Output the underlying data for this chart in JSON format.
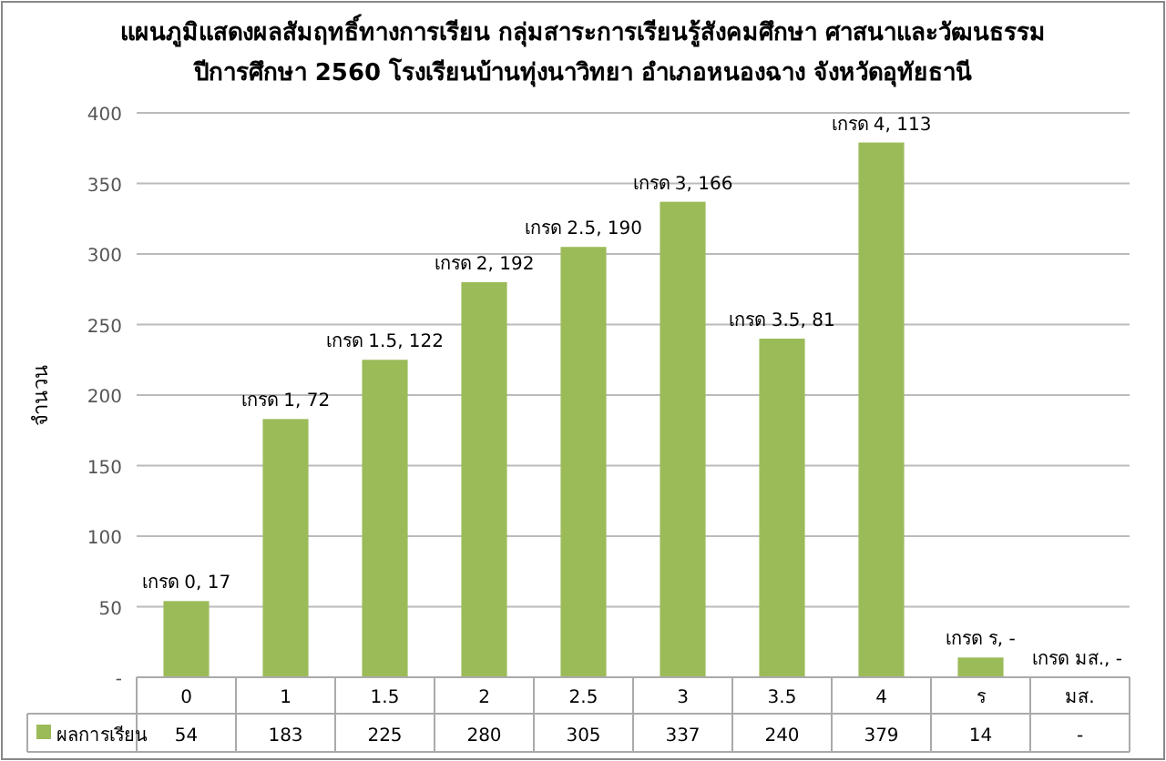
{
  "chart_data": {
    "type": "bar",
    "title": "แผนภูมิแสดงผลสัมฤทธิ์ทางการเรียน กลุ่มสาระการเรียนรู้สังคมศึกษา ศาสนาและวัฒนธรรม\nปีการศึกษา 2560  โรงเรียนบ้านทุ่งนาวิทยา อำเภอหนองฉาง จังหวัดอุทัยธานี",
    "ylabel": "จำนวน",
    "categories": [
      "0",
      "1",
      "1.5",
      "2",
      "2.5",
      "3",
      "3.5",
      "4",
      "ร",
      "มส."
    ],
    "series": [
      {
        "name": "ผลการเรียน",
        "color": "#9bbb59",
        "values": [
          54,
          183,
          225,
          280,
          305,
          337,
          240,
          379,
          14,
          null
        ],
        "value_labels": [
          "54",
          "183",
          "225",
          "280",
          "305",
          "337",
          "240",
          "379",
          "14",
          "-"
        ]
      }
    ],
    "annotations": [
      {
        "text": "เกรด 0,  17",
        "x": "0",
        "y": 54
      },
      {
        "text": "เกรด 1,  72",
        "x": "1",
        "y": 183
      },
      {
        "text": "เกรด 1.5,  122",
        "x": "1.5",
        "y": 225
      },
      {
        "text": "เกรด 2,  192",
        "x": "2",
        "y": 280
      },
      {
        "text": "เกรด 2.5,  190",
        "x": "2.5",
        "y": 305
      },
      {
        "text": "เกรด 3,  166",
        "x": "3",
        "y": 337
      },
      {
        "text": "เกรด 3.5,  81",
        "x": "3.5",
        "y": 240
      },
      {
        "text": "เกรด 4,  113",
        "x": "4",
        "y": 379
      },
      {
        "text": "เกรด ร,  -",
        "x": "ร",
        "y": 14
      },
      "เกรด มส.,  -"
    ],
    "ylim": [
      0,
      400
    ],
    "yticks": [
      {
        "value": 0,
        "label": "-"
      },
      50,
      100,
      150,
      200,
      250,
      300,
      350,
      400
    ],
    "grid": "y",
    "legend": "bottom"
  }
}
